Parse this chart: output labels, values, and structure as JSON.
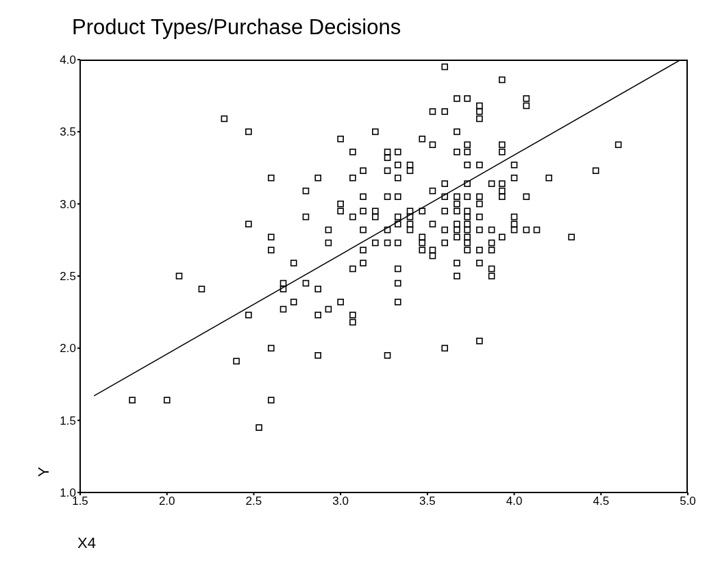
{
  "chart_data": {
    "type": "scatter",
    "title": "Product Types/Purchase Decisions",
    "xlabel": "X4",
    "ylabel": "Y",
    "xlim": [
      1.5,
      5.0
    ],
    "ylim": [
      1.0,
      4.0
    ],
    "xticks": [
      1.5,
      {
        "value": 2,
        "label": "2.0"
      },
      2.5,
      {
        "value": 3,
        "label": "3.0"
      },
      3.5,
      {
        "value": 4,
        "label": "4.0"
      },
      4.5,
      {
        "value": 5,
        "label": "5.0"
      }
    ],
    "yticks": [
      {
        "value": 1,
        "label": "1.0"
      },
      1.5,
      {
        "value": 2,
        "label": "2.0"
      },
      2.5,
      {
        "value": 3,
        "label": "3.0"
      },
      3.5,
      {
        "value": 4,
        "label": "4.0"
      }
    ],
    "grid": false,
    "legend": false,
    "series": [
      {
        "marker": "square",
        "color": "#000000",
        "x": [
          1.8,
          2.0,
          2.07,
          2.2,
          2.33,
          2.4,
          2.47,
          2.47,
          2.47,
          2.53,
          2.6,
          2.6,
          2.6,
          2.6,
          2.6,
          2.67,
          2.67,
          2.67,
          2.73,
          2.73,
          2.8,
          2.8,
          2.8,
          2.87,
          2.87,
          2.87,
          2.87,
          2.93,
          2.93,
          2.93,
          3.0,
          3.0,
          3.0,
          3.0,
          3.07,
          3.07,
          3.07,
          3.07,
          3.07,
          3.07,
          3.13,
          3.13,
          3.13,
          3.13,
          3.13,
          3.13,
          3.2,
          3.2,
          3.2,
          3.2,
          3.27,
          3.27,
          3.27,
          3.27,
          3.27,
          3.27,
          3.27,
          3.33,
          3.33,
          3.33,
          3.33,
          3.33,
          3.33,
          3.33,
          3.33,
          3.33,
          3.33,
          3.4,
          3.4,
          3.4,
          3.4,
          3.4,
          3.4,
          3.47,
          3.47,
          3.47,
          3.47,
          3.47,
          3.53,
          3.53,
          3.53,
          3.53,
          3.53,
          3.53,
          3.6,
          3.6,
          3.6,
          3.6,
          3.6,
          3.6,
          3.6,
          3.6,
          3.67,
          3.67,
          3.67,
          3.67,
          3.67,
          3.67,
          3.67,
          3.67,
          3.67,
          3.67,
          3.67,
          3.73,
          3.73,
          3.73,
          3.73,
          3.73,
          3.73,
          3.73,
          3.73,
          3.73,
          3.73,
          3.73,
          3.73,
          3.73,
          3.8,
          3.8,
          3.8,
          3.8,
          3.8,
          3.8,
          3.8,
          3.8,
          3.8,
          3.8,
          3.8,
          3.87,
          3.87,
          3.87,
          3.87,
          3.87,
          3.87,
          3.93,
          3.93,
          3.93,
          3.93,
          3.93,
          3.93,
          3.93,
          4.0,
          4.0,
          4.0,
          4.0,
          4.0,
          4.07,
          4.07,
          4.07,
          4.07,
          4.13,
          4.2,
          4.33,
          4.47,
          4.6
        ],
        "values": [
          1.64,
          1.64,
          2.5,
          2.41,
          3.59,
          1.91,
          3.5,
          2.86,
          2.23,
          1.45,
          3.18,
          2.77,
          2.68,
          2.0,
          1.64,
          2.45,
          2.41,
          2.27,
          2.59,
          2.32,
          3.09,
          2.91,
          2.45,
          3.18,
          2.41,
          2.23,
          1.95,
          2.82,
          2.73,
          2.27,
          3.45,
          3.0,
          2.95,
          2.32,
          3.36,
          3.18,
          2.91,
          2.55,
          2.23,
          2.18,
          3.23,
          3.05,
          2.95,
          2.82,
          2.68,
          2.59,
          3.5,
          2.95,
          2.91,
          2.73,
          3.36,
          3.32,
          3.23,
          3.05,
          2.82,
          2.73,
          1.95,
          3.36,
          3.27,
          3.18,
          3.05,
          2.91,
          2.86,
          2.73,
          2.55,
          2.45,
          2.32,
          3.27,
          3.23,
          2.95,
          2.91,
          2.86,
          2.82,
          3.45,
          2.95,
          2.77,
          2.73,
          2.68,
          3.64,
          3.41,
          3.09,
          2.86,
          2.68,
          2.64,
          3.95,
          3.64,
          3.14,
          3.05,
          2.95,
          2.82,
          2.73,
          2.0,
          3.73,
          3.5,
          3.36,
          3.05,
          3.0,
          2.95,
          2.86,
          2.82,
          2.77,
          2.59,
          2.5,
          3.73,
          3.41,
          3.36,
          3.27,
          3.14,
          3.05,
          2.95,
          2.91,
          2.86,
          2.82,
          2.77,
          2.73,
          2.68,
          3.68,
          3.64,
          3.59,
          3.27,
          3.05,
          3.0,
          2.91,
          2.82,
          2.68,
          2.59,
          2.05,
          3.14,
          2.82,
          2.73,
          2.68,
          2.55,
          2.5,
          3.86,
          3.41,
          3.36,
          3.14,
          3.09,
          3.05,
          2.77,
          3.27,
          3.18,
          2.91,
          2.86,
          2.82,
          3.73,
          3.68,
          3.05,
          2.82,
          2.82,
          3.18,
          2.77,
          3.23,
          3.41
        ]
      },
      {
        "type": "line",
        "color": "#000000",
        "x": [
          1.58,
          4.96
        ],
        "values": [
          1.67,
          4.0
        ]
      }
    ]
  }
}
